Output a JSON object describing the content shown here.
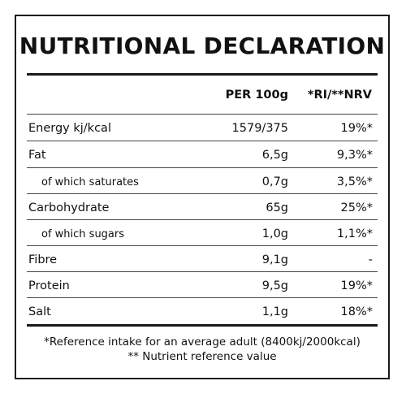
{
  "title": "NUTRITIONAL DECLARATION",
  "header": {
    "per": "PER 100g",
    "ri": "*RI/**NRV"
  },
  "rows": [
    {
      "label": "Energy kj/kcal",
      "per": "1579/375",
      "ri": "19%*"
    },
    {
      "label": "Fat",
      "per": "6,5g",
      "ri": "9,3%*"
    },
    {
      "label": "of which saturates",
      "per": "0,7g",
      "ri": "3,5%*"
    },
    {
      "label": "Carbohydrate",
      "per": "65g",
      "ri": "25%*"
    },
    {
      "label": "of which sugars",
      "per": "1,0g",
      "ri": "1,1%*"
    },
    {
      "label": "Fibre",
      "per": "9,1g",
      "ri": "-"
    },
    {
      "label": "Protein",
      "per": "9,5g",
      "ri": "19%*"
    },
    {
      "label": "Salt",
      "per": "1,1g",
      "ri": "18%*"
    }
  ],
  "footnotes": {
    "ri": "*Reference intake for an average adult (8400kj/2000kcal)",
    "nrv": "** Nutrient reference value"
  }
}
